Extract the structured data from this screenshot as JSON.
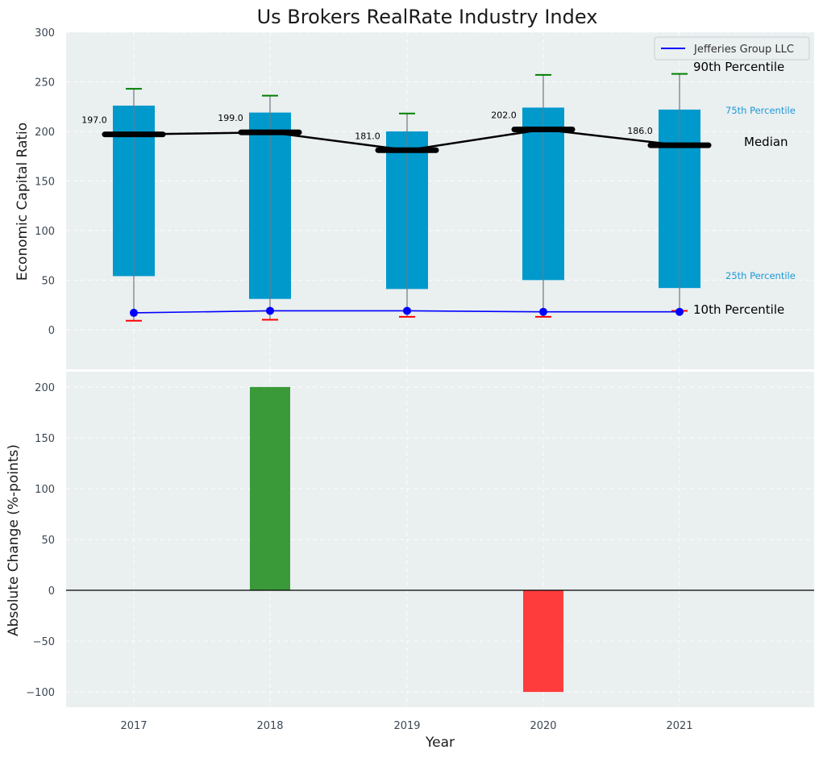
{
  "chart_data": [
    {
      "type": "bar",
      "title": "Us Brokers RealRate Industry Index",
      "ylabel": "Economic Capital Ratio",
      "ylim": [
        -40,
        300
      ],
      "yticks": [
        0,
        50,
        100,
        150,
        200,
        250,
        300
      ],
      "categories": [
        "2017",
        "2018",
        "2019",
        "2020",
        "2021"
      ],
      "percentile_10": [
        9,
        10,
        13,
        13,
        19
      ],
      "percentile_25": [
        54,
        31,
        41,
        50,
        42
      ],
      "median": [
        197,
        199,
        181,
        202,
        186
      ],
      "percentile_75": [
        226,
        219,
        200,
        224,
        222
      ],
      "percentile_90": [
        243,
        236,
        218,
        257,
        258
      ],
      "median_labels": [
        "197.0",
        "199.0",
        "181.0",
        "202.0",
        "186.0"
      ],
      "company_series": {
        "name": "Jefferies Group LLC",
        "values": [
          17,
          19,
          19,
          18,
          18
        ]
      },
      "annotations": {
        "p90": "90th Percentile",
        "p75": "75th Percentile",
        "median": "Median",
        "p25": "25th Percentile",
        "p10": "10th Percentile"
      },
      "legend": {
        "location": "top-right",
        "entries": [
          "Jefferies Group LLC"
        ]
      }
    },
    {
      "type": "bar",
      "ylabel": "Absolute Change (%-points)",
      "xlabel": "Year",
      "ylim": [
        -115,
        215
      ],
      "yticks": [
        -100,
        -50,
        0,
        50,
        100,
        150,
        200
      ],
      "ytick_labels": [
        "−100",
        "−50",
        "0",
        "50",
        "100",
        "150",
        "200"
      ],
      "categories": [
        "2017",
        "2018",
        "2019",
        "2020",
        "2021"
      ],
      "values": [
        0,
        200,
        0,
        -100,
        0
      ]
    }
  ],
  "colors": {
    "background": "#eaeff0",
    "box": "#0099cc",
    "median": "#000000",
    "whisker_top": "#008000",
    "whisker_bottom": "#ff0000",
    "company": "#0000ff",
    "positive": "#3a9a3a",
    "negative": "#ff3c3c",
    "label_p75": "#1d9ad6"
  }
}
